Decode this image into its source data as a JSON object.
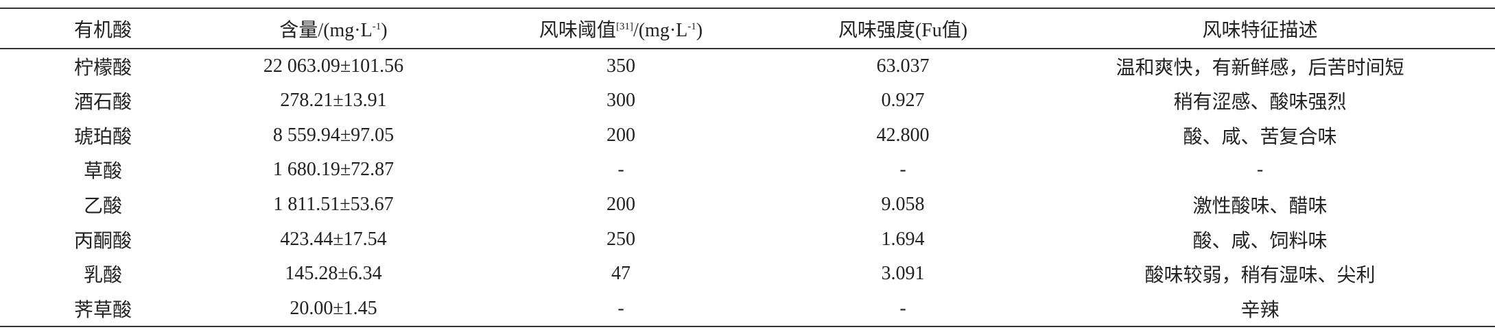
{
  "table": {
    "headers": [
      {
        "text": "有机酸"
      },
      {
        "text": "含量/(mg·L",
        "sup": "-1",
        "tail": ")"
      },
      {
        "text": "风味阈值",
        "sup": "[31]",
        "tail": "/(mg·L",
        "sup2": "-1",
        "tail2": ")"
      },
      {
        "text": "风味强度(Fu值)"
      },
      {
        "text": "风味特征描述"
      }
    ],
    "rows": [
      [
        "柠檬酸",
        "22 063.09±101.56",
        "350",
        "63.037",
        "温和爽快，有新鲜感，后苦时间短"
      ],
      [
        "酒石酸",
        "278.21±13.91",
        "300",
        "0.927",
        "稍有涩感、酸味强烈"
      ],
      [
        "琥珀酸",
        "8 559.94±97.05",
        "200",
        "42.800",
        "酸、咸、苦复合味"
      ],
      [
        "草酸",
        "1 680.19±72.87",
        "-",
        "-",
        "-"
      ],
      [
        "乙酸",
        "1 811.51±53.67",
        "200",
        "9.058",
        "激性酸味、醋味"
      ],
      [
        "丙酮酸",
        "423.44±17.54",
        "250",
        "1.694",
        "酸、咸、饲料味"
      ],
      [
        "乳酸",
        "145.28±6.34",
        "47",
        "3.091",
        "酸味较弱，稍有湿味、尖利"
      ],
      [
        "荠草酸",
        "20.00±1.45",
        "-",
        "-",
        "辛辣"
      ]
    ]
  }
}
